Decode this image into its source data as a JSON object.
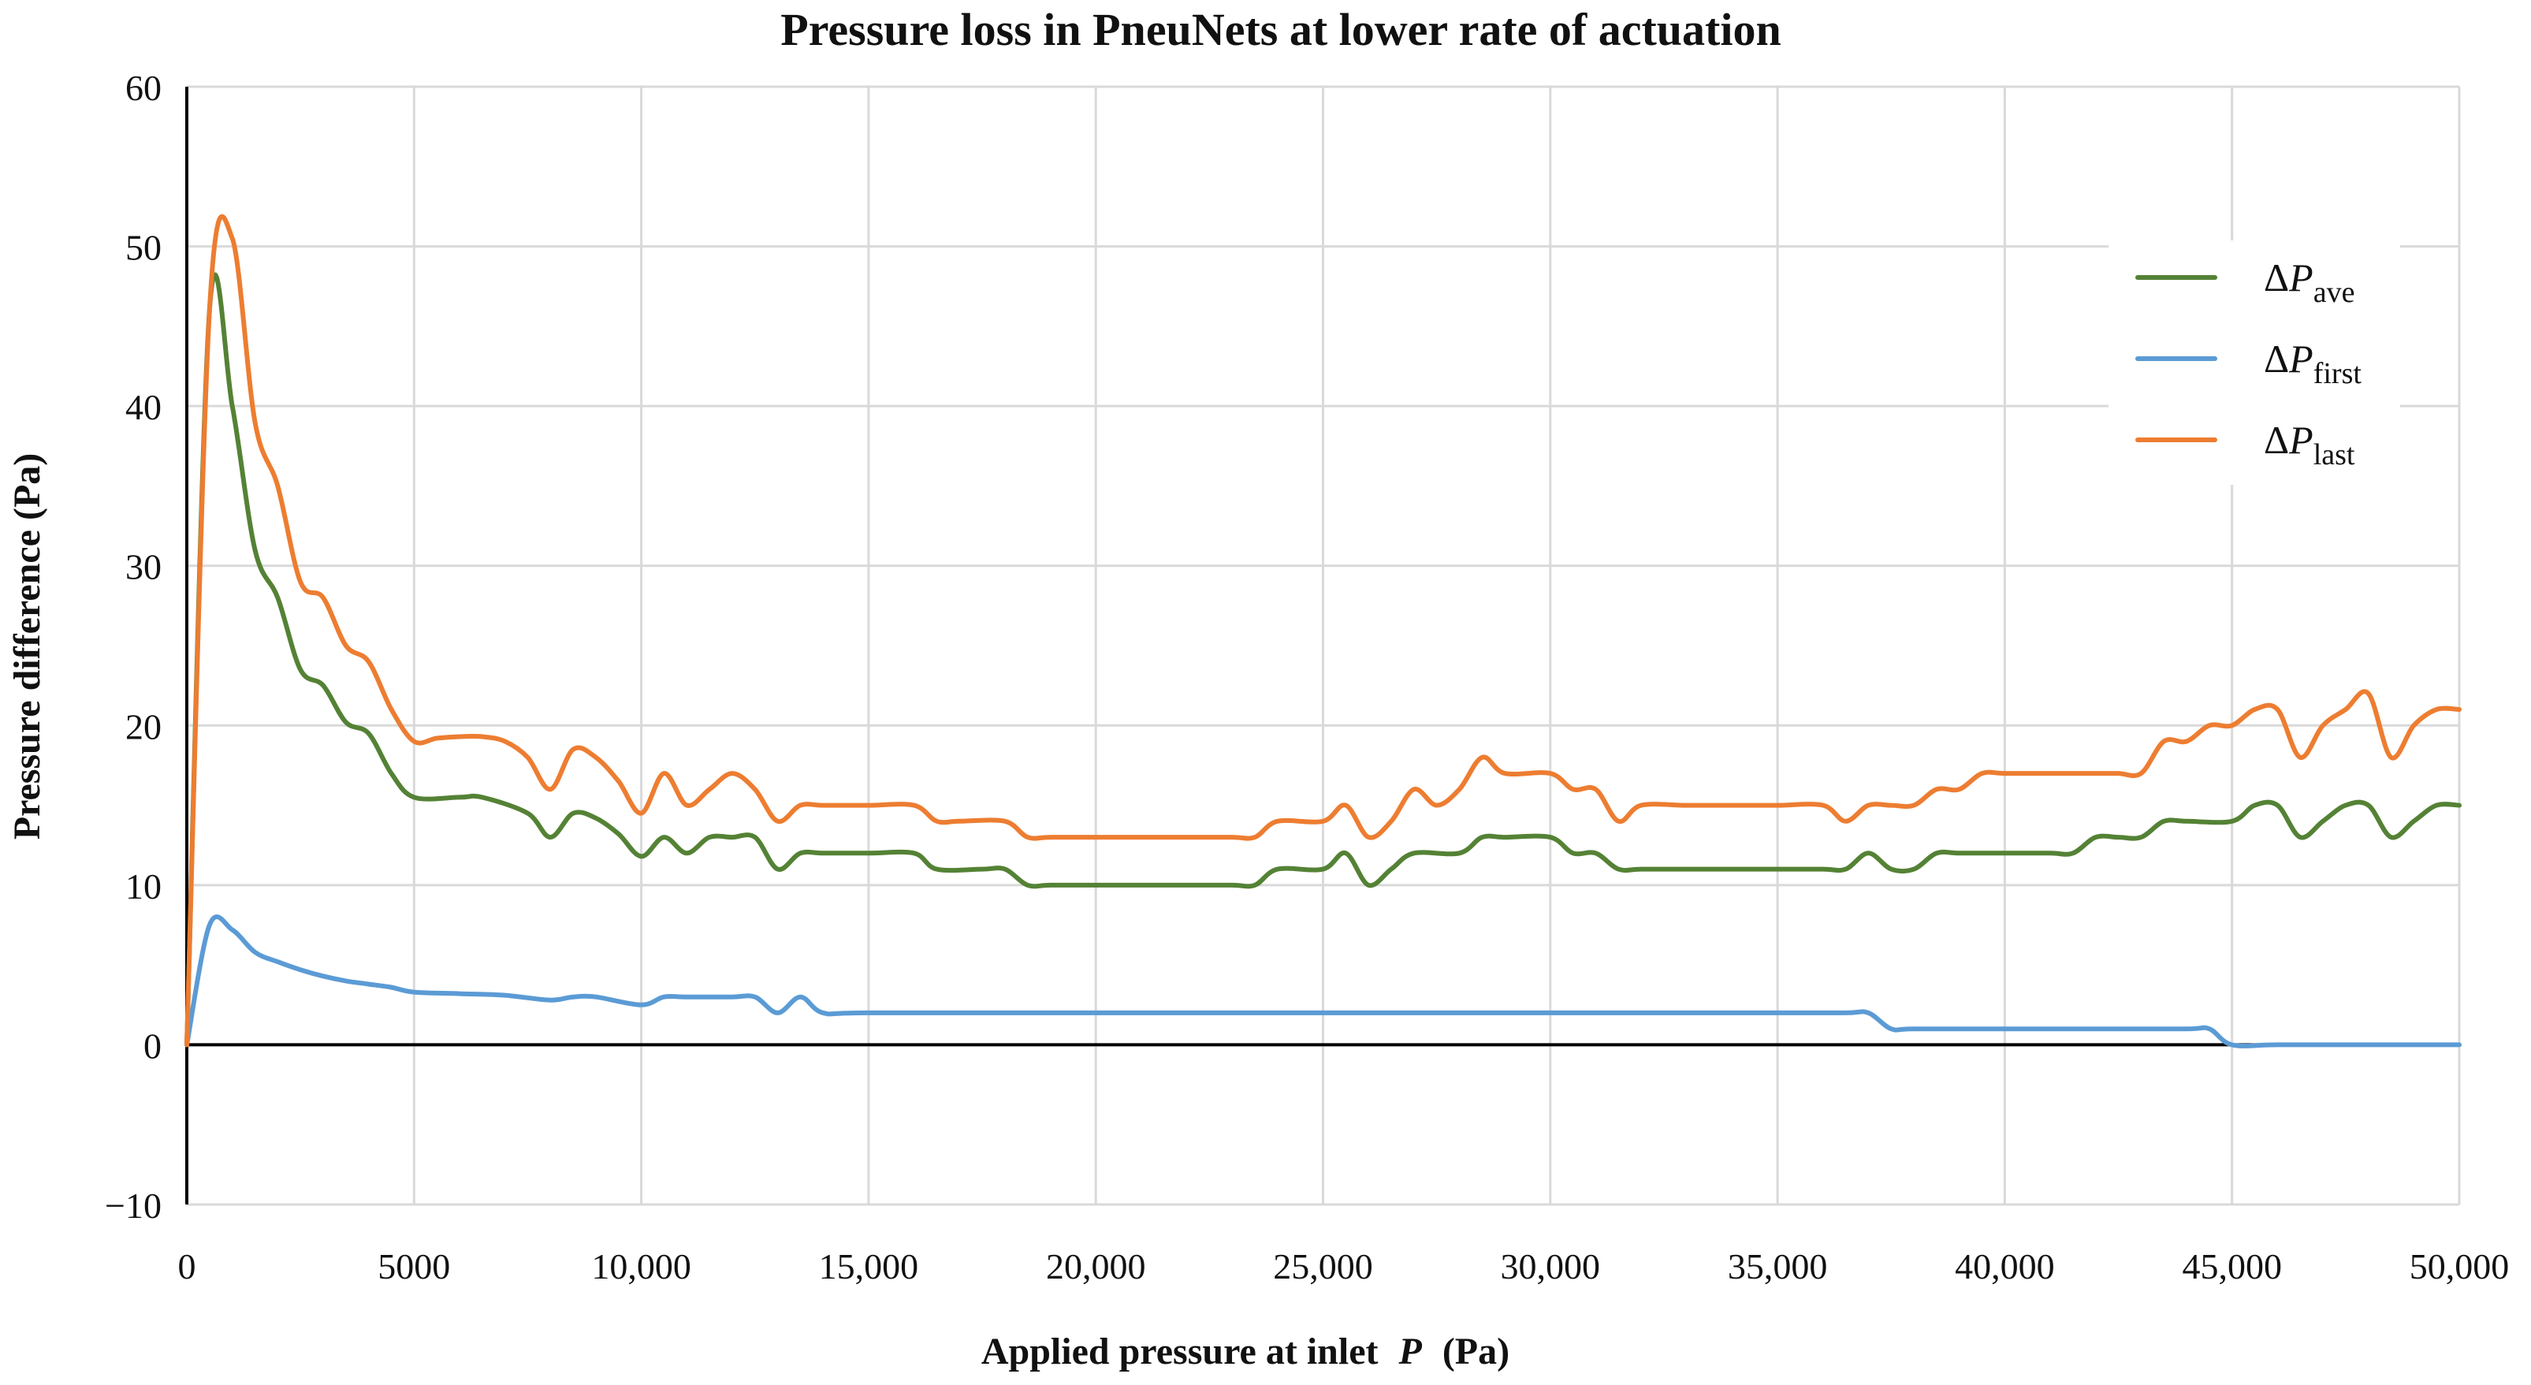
{
  "chart_data": {
    "type": "line",
    "title": "Pressure loss in PneuNets at lower rate of actuation",
    "xlabel": "Applied pressure at inlet",
    "xlabel_var": "P",
    "xlabel_unit": "(Pa)",
    "ylabel": "Pressure difference (Pa)",
    "xlim": [
      0,
      50000
    ],
    "ylim": [
      -10,
      60
    ],
    "x_ticks": [
      0,
      5000,
      10000,
      15000,
      20000,
      25000,
      30000,
      35000,
      40000,
      45000,
      50000
    ],
    "x_tick_labels": [
      "0",
      "5000",
      "10,000",
      "15,000",
      "20,000",
      "25,000",
      "30,000",
      "35,000",
      "40,000",
      "45,000",
      "50,000"
    ],
    "y_ticks": [
      -10,
      0,
      10,
      20,
      30,
      40,
      50,
      60
    ],
    "y_tick_labels": [
      "−10",
      "0",
      "10",
      "20",
      "30",
      "40",
      "50",
      "60"
    ],
    "grid": true,
    "legend_position": "top-right",
    "series": [
      {
        "name": "ΔPave",
        "label_main": "ΔP",
        "label_sub": "ave",
        "color": "#548235",
        "points": [
          [
            0,
            0
          ],
          [
            500,
            46
          ],
          [
            1000,
            40
          ],
          [
            1500,
            31
          ],
          [
            2000,
            28
          ],
          [
            2500,
            23.5
          ],
          [
            3000,
            22.5
          ],
          [
            3500,
            20.2
          ],
          [
            4000,
            19.5
          ],
          [
            4500,
            17
          ],
          [
            5000,
            15.5
          ],
          [
            6000,
            15.5
          ],
          [
            6500,
            15.5
          ],
          [
            7500,
            14.5
          ],
          [
            8000,
            13
          ],
          [
            8500,
            14.5
          ],
          [
            9000,
            14.2
          ],
          [
            9500,
            13.2
          ],
          [
            10000,
            11.8
          ],
          [
            10500,
            13
          ],
          [
            11000,
            12
          ],
          [
            11500,
            13
          ],
          [
            12000,
            13
          ],
          [
            12500,
            13
          ],
          [
            13000,
            11
          ],
          [
            13500,
            12
          ],
          [
            14000,
            12
          ],
          [
            15000,
            12
          ],
          [
            16000,
            12
          ],
          [
            16500,
            11
          ],
          [
            17500,
            11
          ],
          [
            18000,
            11
          ],
          [
            18500,
            10
          ],
          [
            19000,
            10
          ],
          [
            20000,
            10
          ],
          [
            21000,
            10
          ],
          [
            22000,
            10
          ],
          [
            23000,
            10
          ],
          [
            23500,
            10
          ],
          [
            24000,
            11
          ],
          [
            25000,
            11
          ],
          [
            25500,
            12
          ],
          [
            26000,
            10
          ],
          [
            26500,
            11
          ],
          [
            27000,
            12
          ],
          [
            28000,
            12
          ],
          [
            28500,
            13
          ],
          [
            29000,
            13
          ],
          [
            30000,
            13
          ],
          [
            30500,
            12
          ],
          [
            31000,
            12
          ],
          [
            31500,
            11
          ],
          [
            32000,
            11
          ],
          [
            33000,
            11
          ],
          [
            34000,
            11
          ],
          [
            35000,
            11
          ],
          [
            36000,
            11
          ],
          [
            36500,
            11
          ],
          [
            37000,
            12
          ],
          [
            37500,
            11
          ],
          [
            38000,
            11
          ],
          [
            38500,
            12
          ],
          [
            39000,
            12
          ],
          [
            40000,
            12
          ],
          [
            41000,
            12
          ],
          [
            41500,
            12
          ],
          [
            42000,
            13
          ],
          [
            42500,
            13
          ],
          [
            43000,
            13
          ],
          [
            43500,
            14
          ],
          [
            44000,
            14
          ],
          [
            45000,
            14
          ],
          [
            45500,
            15
          ],
          [
            46000,
            15
          ],
          [
            46500,
            13
          ],
          [
            47000,
            14
          ],
          [
            47500,
            15
          ],
          [
            48000,
            15
          ],
          [
            48500,
            13
          ],
          [
            49000,
            14
          ],
          [
            49500,
            15
          ],
          [
            50000,
            15
          ]
        ]
      },
      {
        "name": "ΔPfirst",
        "label_main": "ΔP",
        "label_sub": "first",
        "color": "#5B9BD5",
        "points": [
          [
            0,
            0
          ],
          [
            500,
            7.5
          ],
          [
            1000,
            7.2
          ],
          [
            1500,
            5.8
          ],
          [
            2000,
            5.2
          ],
          [
            2500,
            4.7
          ],
          [
            3000,
            4.3
          ],
          [
            3500,
            4.0
          ],
          [
            4000,
            3.8
          ],
          [
            4500,
            3.6
          ],
          [
            5000,
            3.3
          ],
          [
            6000,
            3.2
          ],
          [
            7000,
            3.1
          ],
          [
            8000,
            2.8
          ],
          [
            8500,
            3.0
          ],
          [
            9000,
            3.0
          ],
          [
            10000,
            2.5
          ],
          [
            10500,
            3.0
          ],
          [
            11000,
            3.0
          ],
          [
            12000,
            3.0
          ],
          [
            12500,
            3.0
          ],
          [
            13000,
            2.0
          ],
          [
            13500,
            3.0
          ],
          [
            14000,
            2.0
          ],
          [
            15000,
            2.0
          ],
          [
            20000,
            2.0
          ],
          [
            25000,
            2.0
          ],
          [
            30000,
            2.0
          ],
          [
            35000,
            2.0
          ],
          [
            36500,
            2.0
          ],
          [
            37000,
            2.0
          ],
          [
            37500,
            1.0
          ],
          [
            38000,
            1.0
          ],
          [
            40000,
            1.0
          ],
          [
            42000,
            1.0
          ],
          [
            44000,
            1.0
          ],
          [
            44500,
            1.0
          ],
          [
            45000,
            0
          ],
          [
            46000,
            0
          ],
          [
            48000,
            0
          ],
          [
            50000,
            0
          ]
        ]
      },
      {
        "name": "ΔPlast",
        "label_main": "ΔP",
        "label_sub": "last",
        "color": "#ED7D31",
        "points": [
          [
            0,
            0
          ],
          [
            500,
            46
          ],
          [
            1000,
            50.5
          ],
          [
            1500,
            39
          ],
          [
            2000,
            35
          ],
          [
            2500,
            29
          ],
          [
            3000,
            28
          ],
          [
            3500,
            25
          ],
          [
            4000,
            24
          ],
          [
            4500,
            21
          ],
          [
            5000,
            19
          ],
          [
            5500,
            19.2
          ],
          [
            6000,
            19.3
          ],
          [
            6500,
            19.3
          ],
          [
            7000,
            19
          ],
          [
            7500,
            18
          ],
          [
            8000,
            16
          ],
          [
            8500,
            18.5
          ],
          [
            9000,
            18
          ],
          [
            9500,
            16.5
          ],
          [
            10000,
            14.5
          ],
          [
            10500,
            17
          ],
          [
            11000,
            15
          ],
          [
            11500,
            16
          ],
          [
            12000,
            17
          ],
          [
            12500,
            16
          ],
          [
            13000,
            14
          ],
          [
            13500,
            15
          ],
          [
            14000,
            15
          ],
          [
            15000,
            15
          ],
          [
            16000,
            15
          ],
          [
            16500,
            14
          ],
          [
            17000,
            14
          ],
          [
            18000,
            14
          ],
          [
            18500,
            13
          ],
          [
            19000,
            13
          ],
          [
            20000,
            13
          ],
          [
            21000,
            13
          ],
          [
            22000,
            13
          ],
          [
            23000,
            13
          ],
          [
            23500,
            13
          ],
          [
            24000,
            14
          ],
          [
            25000,
            14
          ],
          [
            25500,
            15
          ],
          [
            26000,
            13
          ],
          [
            26500,
            14
          ],
          [
            27000,
            16
          ],
          [
            27500,
            15
          ],
          [
            28000,
            16
          ],
          [
            28500,
            18
          ],
          [
            29000,
            17
          ],
          [
            30000,
            17
          ],
          [
            30500,
            16
          ],
          [
            31000,
            16
          ],
          [
            31500,
            14
          ],
          [
            32000,
            15
          ],
          [
            33000,
            15
          ],
          [
            34000,
            15
          ],
          [
            35000,
            15
          ],
          [
            36000,
            15
          ],
          [
            36500,
            14
          ],
          [
            37000,
            15
          ],
          [
            37500,
            15
          ],
          [
            38000,
            15
          ],
          [
            38500,
            16
          ],
          [
            39000,
            16
          ],
          [
            39500,
            17
          ],
          [
            40000,
            17
          ],
          [
            41000,
            17
          ],
          [
            42000,
            17
          ],
          [
            42500,
            17
          ],
          [
            43000,
            17
          ],
          [
            43500,
            19
          ],
          [
            44000,
            19
          ],
          [
            44500,
            20
          ],
          [
            45000,
            20
          ],
          [
            45500,
            21
          ],
          [
            46000,
            21
          ],
          [
            46500,
            18
          ],
          [
            47000,
            20
          ],
          [
            47500,
            21
          ],
          [
            48000,
            22
          ],
          [
            48500,
            18
          ],
          [
            49000,
            20
          ],
          [
            49500,
            21
          ],
          [
            50000,
            21
          ]
        ]
      }
    ]
  }
}
